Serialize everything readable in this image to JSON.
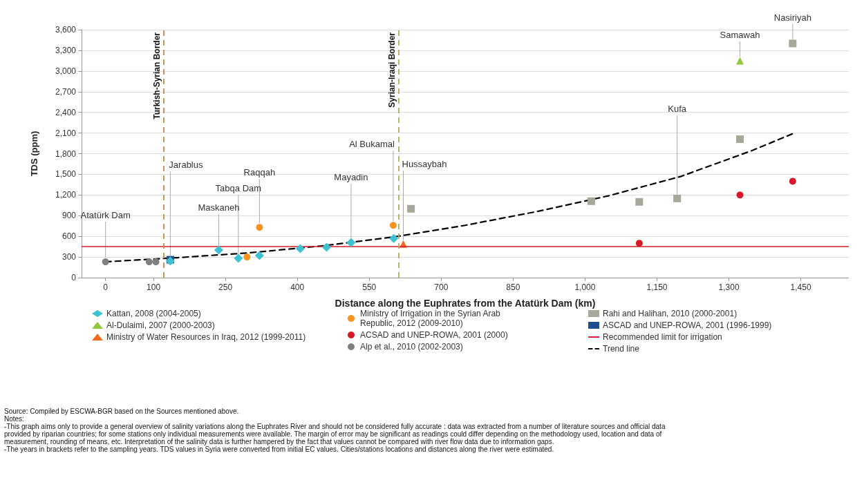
{
  "chart_data": {
    "type": "scatter",
    "xlabel": "Distance along the Euphrates from the Atatürk Dam (km)",
    "ylabel": "TDS (ppm)",
    "xlim": [
      -50,
      1550
    ],
    "xticks": [
      0,
      100,
      250,
      400,
      550,
      700,
      850,
      {
        "value": 1000,
        "label": "1,000"
      },
      {
        "value": 1150,
        "label": "1,150"
      },
      {
        "value": 1300,
        "label": "1,300"
      },
      {
        "value": 1450,
        "label": "1,450"
      }
    ],
    "ylim": [
      0,
      3600
    ],
    "yticks": [
      0,
      300,
      600,
      900,
      {
        "value": 1200,
        "label": "1,200"
      },
      {
        "value": 1500,
        "label": "1,500"
      },
      {
        "value": 1800,
        "label": "1,800"
      },
      {
        "value": 2100,
        "label": "2,100"
      },
      {
        "value": 2400,
        "label": "2,400"
      },
      {
        "value": 2700,
        "label": "2,700"
      },
      {
        "value": 3000,
        "label": "3,000"
      },
      {
        "value": 3300,
        "label": "3,300"
      },
      {
        "value": 3600,
        "label": "3,600"
      }
    ],
    "grid": "y",
    "legend": "bottom",
    "series": [
      {
        "name": "Kattan, 2008 (2004-2005)",
        "color": "#3ec1d3",
        "marker": "diamond",
        "x": [
          135,
          236,
          277,
          321,
          406,
          461,
          512,
          601
        ],
        "values": [
          240,
          400,
          280,
          320,
          420,
          440,
          510,
          570
        ]
      },
      {
        "name": "Al-Dulaimi, 2007 (2000-2003)",
        "color": "#92c83e",
        "marker": "triangle",
        "x": [
          1323
        ],
        "values": [
          3150
        ]
      },
      {
        "name": "Ministry of Water Resources in Iraq, 2012 (1999-2011)",
        "color": "#f26b21",
        "marker": "triangle",
        "x": [
          621
        ],
        "values": [
          490
        ]
      },
      {
        "name": "Ministry of Irrigation in the Syrian Arab Republic, 2012 (2009-2010)",
        "color": "#f7931e",
        "marker": "circle",
        "x": [
          295,
          321,
          600
        ],
        "values": [
          300,
          730,
          760
        ]
      },
      {
        "name": "ACSAD and UNEP-ROWA, 2001 (2000)",
        "color": "#d7192a",
        "marker": "circle",
        "x": [
          1113,
          1323,
          1433
        ],
        "values": [
          500,
          1200,
          1400
        ]
      },
      {
        "name": "Alp et al., 2010 (2002-2003)",
        "color": "#7f7f7f",
        "marker": "circle",
        "x": [
          0,
          91,
          105
        ],
        "values": [
          230,
          230,
          230
        ]
      },
      {
        "name": "Rahi and Halihan, 2010 (2000-2001)",
        "color": "#a8a89a",
        "marker": "square",
        "x": [
          637,
          1013,
          1113,
          1192,
          1323,
          1433
        ],
        "values": [
          1000,
          1110,
          1100,
          1150,
          2010,
          3400
        ]
      },
      {
        "name": "ASCAD and UNEP-ROWA, 2001 (1996-1999)",
        "color": "#1f4e8c",
        "marker": "square",
        "x": [
          135
        ],
        "values": [
          260
        ]
      },
      {
        "name": "Trend line",
        "type": "line",
        "color": "#000000",
        "marker": "none",
        "line_style": "dashed",
        "x": [
          0,
          150,
          300,
          450,
          600,
          750,
          900,
          1050,
          1200,
          1350,
          1433
        ],
        "values": [
          230,
          290,
          360,
          460,
          590,
          760,
          960,
          1190,
          1470,
          1850,
          2090
        ]
      }
    ],
    "ref_lines": [
      {
        "axis": "y",
        "value": 450,
        "label": "Recommended limit for irrigation",
        "color": "#d7192a",
        "line_style": "solid"
      },
      {
        "axis": "x",
        "value": 121,
        "label": "Turkish-Syrian Border",
        "color": "#c8884a",
        "line_style": "dashed"
      },
      {
        "axis": "x",
        "value": 611,
        "label": "Syrian-Iraqi Border",
        "color": "#b5a862",
        "line_style": "dashed"
      }
    ],
    "annotations": [
      {
        "text": "Atatürk Dam",
        "x": 0,
        "y": 230
      },
      {
        "text": "Jarablus",
        "x": 135,
        "y": 260
      },
      {
        "text": "Maskaneh",
        "x": 236,
        "y": 400
      },
      {
        "text": "Tabqa Dam",
        "x": 277,
        "y": 280
      },
      {
        "text": "Raqqah",
        "x": 321,
        "y": 730
      },
      {
        "text": "Mayadin",
        "x": 512,
        "y": 510
      },
      {
        "text": "Al Bukamal",
        "x": 600,
        "y": 760
      },
      {
        "text": "Hussaybah",
        "x": 621,
        "y": 490
      },
      {
        "text": "Kufa",
        "x": 1192,
        "y": 1150
      },
      {
        "text": "Samawah",
        "x": 1323,
        "y": 3150
      },
      {
        "text": "Nasiriyah",
        "x": 1433,
        "y": 3400
      },
      "Source: Compiled by ESCWA-BGR based on the Sources mentioned above.",
      "Notes:",
      "-This graph aims only to provide a general overview of salinity variations along the Euphrates River and should not be considered fully accurate : data was extracted from a number of literature sources and official data provided by riparian countries; for some stations only individual measurements were available. The margin of error may be significant as readings could differ depending on the methodology used, location and data of measurement, rounding of means, etc. Interpretation of the salinity data is further hampered by the fact that values cannot be compared with river flow data due to information gaps.",
      "-The years in brackets refer to the sampling years. TDS values in Syria were converted from initial EC values. Cities/stations locations and distances along the river were estimated."
    ]
  }
}
